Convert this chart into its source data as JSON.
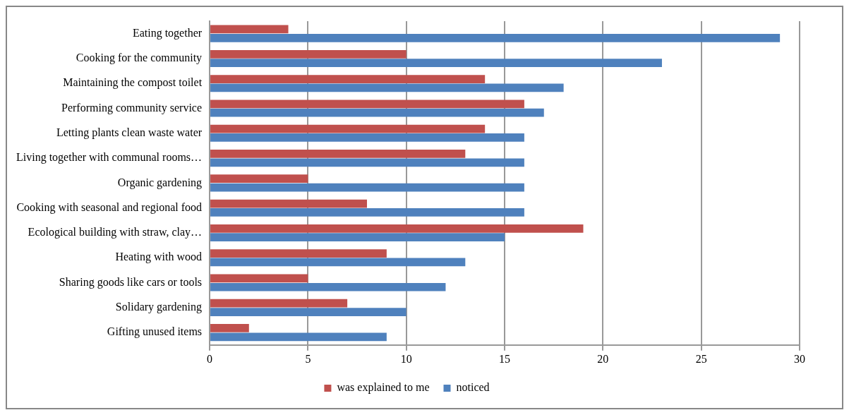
{
  "chart_data": {
    "type": "bar",
    "orientation": "horizontal",
    "categories": [
      "Eating together",
      "Cooking for the community",
      "Maintaining the compost toilet",
      "Performing community service",
      "Letting plants clean waste water",
      "Living together with communal rooms…",
      "Organic gardening",
      "Cooking with seasonal and regional food",
      "Ecological building with straw, clay…",
      "Heating with wood",
      "Sharing goods like cars or tools",
      "Solidary gardening",
      "Gifting unused items"
    ],
    "series": [
      {
        "name": "was explained to me",
        "color": "#c0504d",
        "values": [
          4,
          10,
          14,
          16,
          14,
          13,
          5,
          8,
          19,
          9,
          5,
          7,
          2
        ]
      },
      {
        "name": "noticed",
        "color": "#4f81bd",
        "values": [
          29,
          23,
          18,
          17,
          16,
          16,
          16,
          16,
          15,
          13,
          12,
          10,
          9
        ]
      }
    ],
    "xlim": [
      0,
      30
    ],
    "xticks": [
      0,
      5,
      10,
      15,
      20,
      25,
      30
    ],
    "grid": "x",
    "legend": "bottom"
  }
}
